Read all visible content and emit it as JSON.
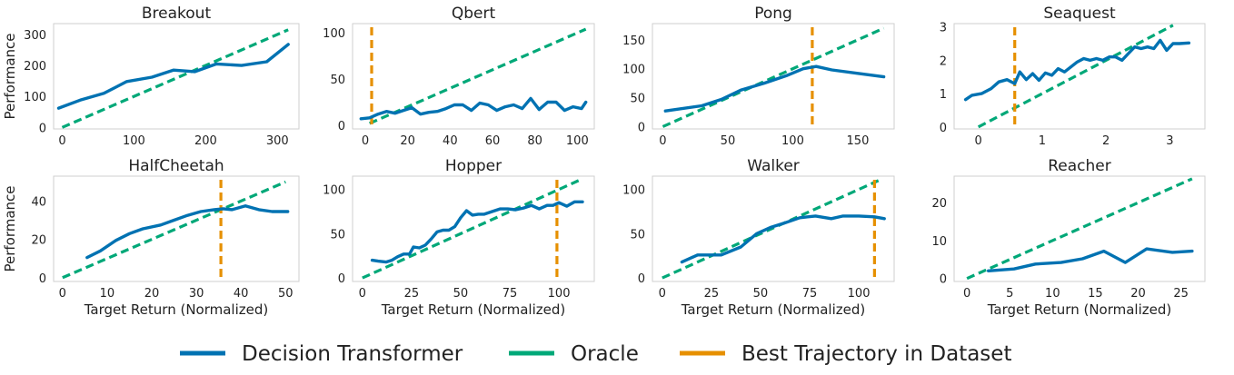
{
  "colors": {
    "dt": "#0072b2",
    "oracle": "#00a878",
    "best": "#e69000"
  },
  "legend": [
    {
      "key": "dt",
      "label": "Decision Transformer"
    },
    {
      "key": "oracle",
      "label": "Oracle"
    },
    {
      "key": "best",
      "label": "Best Trajectory in Dataset"
    }
  ],
  "chart_data": [
    {
      "type": "line",
      "title": "Breakout",
      "xlabel": "",
      "ylabel": "Performance",
      "xlim": [
        -12,
        330
      ],
      "ylim": [
        -5,
        335
      ],
      "xticks": [
        0,
        100,
        200,
        300
      ],
      "yticks": [
        0,
        100,
        200,
        300
      ],
      "oracle": [
        [
          0,
          0
        ],
        [
          315,
          315
        ]
      ],
      "best": null,
      "series": [
        {
          "name": "Decision Transformer",
          "x": [
            -5,
            25,
            58,
            90,
            125,
            155,
            185,
            215,
            250,
            285,
            315
          ],
          "y": [
            62,
            88,
            110,
            148,
            162,
            185,
            180,
            205,
            200,
            212,
            268
          ]
        }
      ]
    },
    {
      "type": "line",
      "title": "Qbert",
      "xlabel": "",
      "ylabel": "",
      "xlim": [
        -6,
        108
      ],
      "ylim": [
        -4,
        110
      ],
      "xticks": [
        0,
        20,
        40,
        60,
        80,
        100
      ],
      "yticks": [
        0,
        50,
        100
      ],
      "oracle": [
        [
          2,
          2
        ],
        [
          104,
          104
        ]
      ],
      "best": 3,
      "series": [
        {
          "name": "Decision Transformer",
          "x": [
            -2,
            2,
            6,
            10,
            14,
            18,
            22,
            26,
            30,
            34,
            38,
            42,
            46,
            50,
            54,
            58,
            62,
            66,
            70,
            74,
            78,
            82,
            86,
            90,
            94,
            98,
            102,
            104
          ],
          "y": [
            7,
            8,
            12,
            15,
            13,
            16,
            19,
            12,
            14,
            15,
            18,
            22,
            22,
            16,
            24,
            22,
            16,
            20,
            22,
            18,
            29,
            17,
            25,
            25,
            16,
            20,
            18,
            25
          ]
        }
      ]
    },
    {
      "type": "line",
      "title": "Pong",
      "xlabel": "",
      "ylabel": "",
      "xlim": [
        -8,
        178
      ],
      "ylim": [
        -4,
        178
      ],
      "xticks": [
        0,
        50,
        100,
        150
      ],
      "yticks": [
        0,
        50,
        100,
        150
      ],
      "oracle": [
        [
          0,
          0
        ],
        [
          170,
          170
        ]
      ],
      "best": 115,
      "series": [
        {
          "name": "Decision Transformer",
          "x": [
            2,
            30,
            45,
            60,
            78,
            95,
            108,
            118,
            130,
            150,
            170
          ],
          "y": [
            27,
            36,
            47,
            63,
            75,
            88,
            100,
            104,
            98,
            92,
            86
          ]
        }
      ]
    },
    {
      "type": "line",
      "title": "Seaquest",
      "xlabel": "",
      "ylabel": "",
      "xlim": [
        -0.38,
        3.55
      ],
      "ylim": [
        -0.06,
        3.1
      ],
      "xticks": [
        0,
        1,
        2,
        3
      ],
      "yticks": [
        0,
        1,
        2,
        3
      ],
      "oracle": [
        [
          0,
          0
        ],
        [
          3.05,
          3.05
        ]
      ],
      "best": 0.57,
      "series": [
        {
          "name": "Decision Transformer",
          "x": [
            -0.2,
            -0.1,
            0.05,
            0.2,
            0.32,
            0.45,
            0.57,
            0.65,
            0.75,
            0.85,
            0.95,
            1.05,
            1.15,
            1.25,
            1.35,
            1.45,
            1.55,
            1.65,
            1.75,
            1.85,
            1.95,
            2.05,
            2.15,
            2.25,
            2.35,
            2.45,
            2.55,
            2.65,
            2.75,
            2.85,
            2.95,
            3.05,
            3.15,
            3.3
          ],
          "y": [
            0.82,
            0.95,
            1.0,
            1.15,
            1.35,
            1.42,
            1.3,
            1.65,
            1.42,
            1.6,
            1.4,
            1.62,
            1.55,
            1.75,
            1.65,
            1.8,
            1.95,
            2.05,
            2.0,
            2.05,
            2.0,
            2.1,
            2.1,
            2.0,
            2.2,
            2.4,
            2.35,
            2.4,
            2.35,
            2.6,
            2.3,
            2.5,
            2.5,
            2.52
          ]
        }
      ]
    },
    {
      "type": "line",
      "title": "HalfCheetah",
      "xlabel": "Target Return (Normalized)",
      "ylabel": "Performance",
      "xlim": [
        -2,
        53
      ],
      "ylim": [
        -2,
        53
      ],
      "xticks": [
        0,
        10,
        20,
        30,
        40,
        50
      ],
      "yticks": [
        0,
        20,
        40
      ],
      "oracle": [
        [
          0,
          0
        ],
        [
          50,
          50
        ]
      ],
      "best": 35.5,
      "series": [
        {
          "name": "Decision Transformer",
          "x": [
            5.5,
            8.5,
            12,
            15,
            18,
            22,
            25,
            28,
            31,
            34,
            36,
            38,
            41,
            44,
            47,
            50.5
          ],
          "y": [
            10.5,
            14,
            19.5,
            23,
            25.5,
            27.5,
            30,
            32.5,
            34.5,
            35.5,
            36,
            35.5,
            37.5,
            35.5,
            34.5,
            34.5
          ]
        }
      ]
    },
    {
      "type": "line",
      "title": "Hopper",
      "xlabel": "Target Return (Normalized)",
      "ylabel": "",
      "xlim": [
        -5,
        118
      ],
      "ylim": [
        -4,
        115
      ],
      "xticks": [
        0,
        25,
        50,
        75,
        100
      ],
      "yticks": [
        0,
        50,
        100
      ],
      "oracle": [
        [
          0,
          0
        ],
        [
          110,
          110
        ]
      ],
      "best": 99,
      "series": [
        {
          "name": "Decision Transformer",
          "x": [
            5,
            8,
            12,
            15,
            18,
            21,
            24,
            26,
            29,
            32,
            35,
            38,
            41,
            44,
            47,
            50,
            53,
            56,
            59,
            62,
            66,
            70,
            74,
            78,
            82,
            86,
            90,
            94,
            97,
            100,
            104,
            108,
            112
          ],
          "y": [
            20,
            19,
            18,
            20,
            24,
            27,
            27,
            35,
            34,
            37,
            44,
            52,
            54,
            54,
            58,
            68,
            76,
            71,
            72,
            72,
            75,
            78,
            78,
            77,
            79,
            82,
            78,
            82,
            82,
            85,
            81,
            86,
            86
          ]
        }
      ]
    },
    {
      "type": "line",
      "title": "Walker",
      "xlabel": "Target Return (Normalized)",
      "ylabel": "",
      "xlim": [
        -5,
        118
      ],
      "ylim": [
        -4,
        115
      ],
      "xticks": [
        0,
        25,
        50,
        75,
        100
      ],
      "yticks": [
        0,
        50,
        100
      ],
      "oracle": [
        [
          0,
          0
        ],
        [
          110,
          110
        ]
      ],
      "best": 108,
      "series": [
        {
          "name": "Decision Transformer",
          "x": [
            10,
            18,
            25,
            30,
            40,
            48,
            55,
            62,
            70,
            78,
            86,
            92,
            100,
            108,
            113
          ],
          "y": [
            18,
            26,
            26,
            26,
            35,
            50,
            57,
            62,
            68,
            70,
            67,
            70,
            70,
            69,
            67
          ]
        }
      ]
    },
    {
      "type": "line",
      "title": "Reacher",
      "xlabel": "Target Return (Normalized)",
      "ylabel": "",
      "xlim": [
        -1.5,
        27.8
      ],
      "ylim": [
        -0.8,
        27
      ],
      "xticks": [
        0,
        5,
        10,
        15,
        20,
        25
      ],
      "yticks": [
        0,
        10,
        20
      ],
      "oracle": [
        [
          0,
          0
        ],
        [
          26.3,
          26.3
        ]
      ],
      "best": null,
      "series": [
        {
          "name": "Decision Transformer",
          "x": [
            2.5,
            5.5,
            8,
            11,
            13.5,
            16,
            18.5,
            21,
            24,
            26.3
          ],
          "y": [
            2,
            2.5,
            3.8,
            4.2,
            5.2,
            7.2,
            4.2,
            7.8,
            6.9,
            7.2
          ]
        }
      ]
    }
  ]
}
